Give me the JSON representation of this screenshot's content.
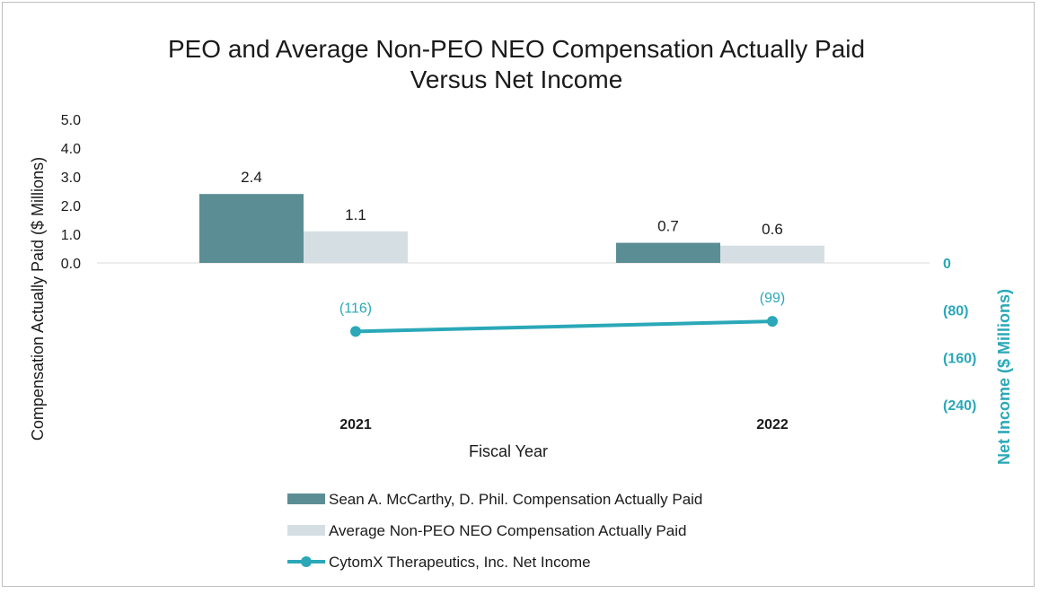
{
  "chart_data": {
    "type": "bar",
    "title_line1": "PEO and Average Non-PEO NEO Compensation Actually Paid",
    "title_line2": "Versus Net Income",
    "xlabel": "Fiscal Year",
    "ylabel": "Compensation Actually Paid ($ Millions)",
    "y2label": "Net Income ($ Millions)",
    "categories": [
      "2021",
      "2022"
    ],
    "ylim": [
      0,
      5
    ],
    "yticks": [
      "5.0",
      "4.0",
      "3.0",
      "2.0",
      "1.0",
      "0.0"
    ],
    "y2lim": [
      -240,
      0
    ],
    "y2ticks": [
      "0",
      "(80)",
      "(160)",
      "(240)"
    ],
    "series": [
      {
        "name": "Sean A. McCarthy, D. Phil. Compensation Actually Paid",
        "kind": "bar",
        "values": [
          2.4,
          0.7
        ],
        "labels": [
          "2.4",
          "0.7"
        ],
        "color": "#5b8e94"
      },
      {
        "name": "Average Non-PEO NEO Compensation Actually Paid",
        "kind": "bar",
        "values": [
          1.1,
          0.6
        ],
        "labels": [
          "1.1",
          "0.6"
        ],
        "color": "#d5dfe3"
      },
      {
        "name": "CytomX Therapeutics, Inc. Net Income",
        "kind": "line",
        "values": [
          -116,
          -99
        ],
        "labels": [
          "(116)",
          "(99)"
        ],
        "color": "#2aa8b8"
      }
    ]
  }
}
